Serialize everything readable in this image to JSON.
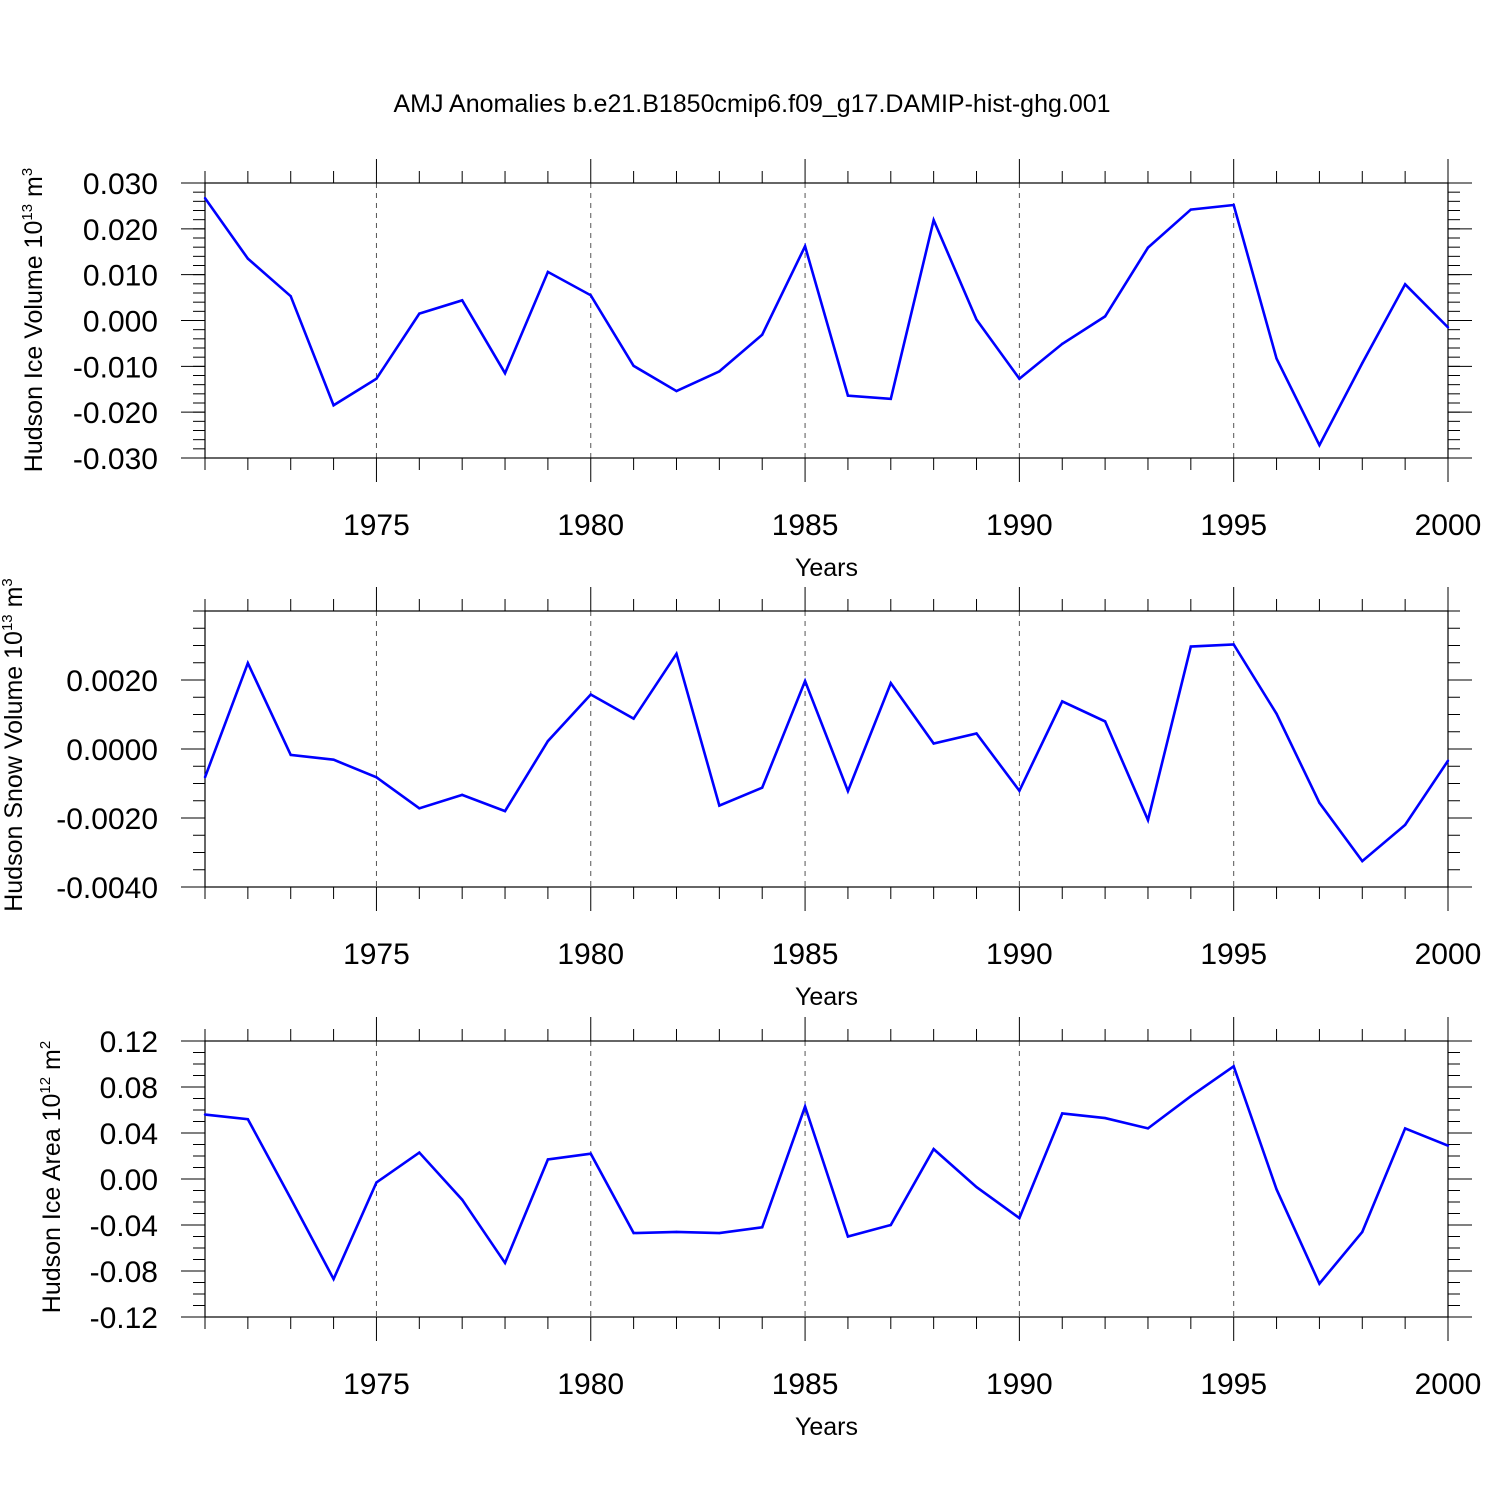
{
  "figure": {
    "title": "AMJ Anomalies b.e21.B1850cmip6.f09_g17.DAMIP-hist-ghg.001"
  },
  "colors": {
    "line": "#0000ff",
    "axis": "#000000",
    "grid": "#555555"
  },
  "chart_data": [
    {
      "type": "line",
      "title": "AMJ Anomalies b.e21.B1850cmip6.f09_g17.DAMIP-hist-ghg.001",
      "xlabel": "Years",
      "ylabel": "Hudson Ice Volume",
      "ylabel_unit_base": "10",
      "ylabel_unit_exp": "13",
      "ylabel_unit_name": "m",
      "ylabel_unit_pow": "3",
      "xlim": [
        1971,
        2000
      ],
      "ylim": [
        -0.03,
        0.03
      ],
      "x_ticks": [
        1975,
        1980,
        1985,
        1990,
        1995,
        2000
      ],
      "x_tick_labels": [
        "1975",
        "1980",
        "1985",
        "1990",
        "1995",
        "2000"
      ],
      "y_ticks": [
        -0.03,
        -0.02,
        -0.01,
        0.0,
        0.01,
        0.02,
        0.03
      ],
      "y_tick_labels": [
        "-0.030",
        "-0.020",
        "-0.010",
        "0.000",
        "0.010",
        "0.020",
        "0.030"
      ],
      "y_minor_step": 0.002,
      "x": [
        1971,
        1972,
        1973,
        1974,
        1975,
        1976,
        1977,
        1978,
        1979,
        1980,
        1981,
        1982,
        1983,
        1984,
        1985,
        1986,
        1987,
        1988,
        1989,
        1990,
        1991,
        1992,
        1993,
        1994,
        1995,
        1996,
        1997,
        1998,
        1999,
        2000
      ],
      "series": [
        {
          "name": "Hudson Ice Volume",
          "values": [
            0.0267,
            0.0135,
            0.0053,
            -0.0185,
            -0.0127,
            0.0015,
            0.0044,
            -0.0115,
            0.0106,
            0.0055,
            -0.0099,
            -0.0154,
            -0.0111,
            -0.0031,
            0.0162,
            -0.0164,
            -0.0171,
            0.0219,
            0.0002,
            -0.0127,
            -0.0051,
            0.0009,
            0.0159,
            0.0242,
            0.0252,
            -0.0083,
            -0.0272,
            -0.0093,
            0.0079,
            -0.0015
          ]
        }
      ]
    },
    {
      "type": "line",
      "xlabel": "Years",
      "ylabel": "Hudson Snow Volume",
      "ylabel_unit_base": "10",
      "ylabel_unit_exp": "13",
      "ylabel_unit_name": "m",
      "ylabel_unit_pow": "3",
      "xlim": [
        1971,
        2000
      ],
      "ylim": [
        -0.004,
        0.004
      ],
      "x_ticks": [
        1975,
        1980,
        1985,
        1990,
        1995,
        2000
      ],
      "x_tick_labels": [
        "1975",
        "1980",
        "1985",
        "1990",
        "1995",
        "2000"
      ],
      "y_ticks": [
        -0.004,
        -0.002,
        0.0,
        0.002
      ],
      "y_tick_labels": [
        "-0.0040",
        "-0.0020",
        "0.0000",
        "0.0020"
      ],
      "y_minor_step": 0.0005,
      "x": [
        1971,
        1972,
        1973,
        1974,
        1975,
        1976,
        1977,
        1978,
        1979,
        1980,
        1981,
        1982,
        1983,
        1984,
        1985,
        1986,
        1987,
        1988,
        1989,
        1990,
        1991,
        1992,
        1993,
        1994,
        1995,
        1996,
        1997,
        1998,
        1999,
        2000
      ],
      "series": [
        {
          "name": "Hudson Snow Volume",
          "values": [
            -0.00082,
            0.00249,
            -0.00017,
            -0.00031,
            -0.00082,
            -0.00172,
            -0.00133,
            -0.0018,
            0.00023,
            0.00158,
            0.00088,
            0.00276,
            -0.00164,
            -0.00112,
            0.00197,
            -0.00122,
            0.00191,
            0.00016,
            0.00045,
            -0.00121,
            0.00138,
            0.0008,
            -0.00206,
            0.00297,
            0.00303,
            0.00102,
            -0.00156,
            -0.00325,
            -0.0022,
            -0.00034
          ]
        }
      ]
    },
    {
      "type": "line",
      "xlabel": "Years",
      "ylabel": "Hudson Ice Area",
      "ylabel_unit_base": "10",
      "ylabel_unit_exp": "12",
      "ylabel_unit_name": "m",
      "ylabel_unit_pow": "2",
      "xlim": [
        1971,
        2000
      ],
      "ylim": [
        -0.12,
        0.12
      ],
      "x_ticks": [
        1975,
        1980,
        1985,
        1990,
        1995,
        2000
      ],
      "x_tick_labels": [
        "1975",
        "1980",
        "1985",
        "1990",
        "1995",
        "2000"
      ],
      "y_ticks": [
        -0.12,
        -0.08,
        -0.04,
        0.0,
        0.04,
        0.08,
        0.12
      ],
      "y_tick_labels": [
        "-0.12",
        "-0.08",
        "-0.04",
        "0.00",
        "0.04",
        "0.08",
        "0.12"
      ],
      "y_minor_step": 0.01,
      "x": [
        1971,
        1972,
        1973,
        1974,
        1975,
        1976,
        1977,
        1978,
        1979,
        1980,
        1981,
        1982,
        1983,
        1984,
        1985,
        1986,
        1987,
        1988,
        1989,
        1990,
        1991,
        1992,
        1993,
        1994,
        1995,
        1996,
        1997,
        1998,
        1999,
        2000
      ],
      "series": [
        {
          "name": "Hudson Ice Area",
          "values": [
            0.056,
            0.052,
            -0.017,
            -0.087,
            -0.003,
            0.023,
            -0.018,
            -0.073,
            0.017,
            0.022,
            -0.047,
            -0.046,
            -0.047,
            -0.042,
            0.063,
            -0.05,
            -0.04,
            0.026,
            -0.007,
            -0.034,
            0.057,
            0.053,
            0.044,
            0.072,
            0.098,
            -0.009,
            -0.091,
            -0.046,
            0.044,
            0.029
          ]
        }
      ]
    }
  ]
}
